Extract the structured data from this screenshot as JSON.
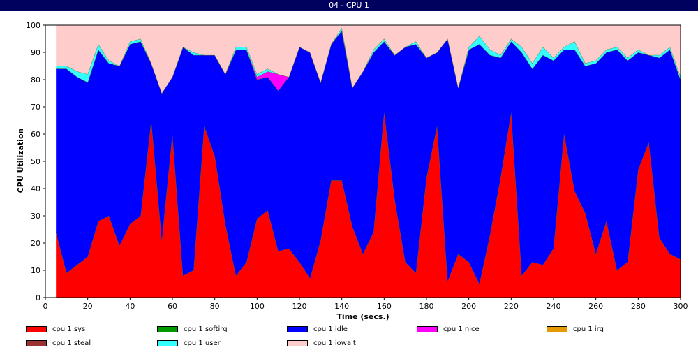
{
  "window": {
    "title": "04 - CPU 1"
  },
  "chart_data": {
    "type": "area",
    "stacked": true,
    "title": "04 - CPU 1",
    "xlabel": "Time (secs.)",
    "ylabel": "CPU Utilization",
    "xlim": [
      0,
      300
    ],
    "ylim": [
      0,
      100
    ],
    "xticks": [
      0,
      20,
      40,
      60,
      80,
      100,
      120,
      140,
      160,
      180,
      200,
      220,
      240,
      260,
      280,
      300
    ],
    "yticks": [
      0,
      10,
      20,
      30,
      40,
      50,
      60,
      70,
      80,
      90,
      100
    ],
    "grid": false,
    "legend_placement": "bottom",
    "x": [
      5,
      10,
      15,
      20,
      25,
      30,
      35,
      40,
      45,
      50,
      55,
      60,
      65,
      70,
      75,
      80,
      85,
      90,
      95,
      100,
      105,
      110,
      115,
      120,
      125,
      130,
      135,
      140,
      145,
      150,
      155,
      160,
      165,
      170,
      175,
      180,
      185,
      190,
      195,
      200,
      205,
      210,
      215,
      220,
      225,
      230,
      235,
      240,
      245,
      250,
      255,
      260,
      265,
      270,
      275,
      280,
      285,
      290,
      295,
      300
    ],
    "series": [
      {
        "name": "cpu 1 sys",
        "color": "#ff0000",
        "values": [
          24,
          9,
          12,
          15,
          28,
          30,
          19,
          27,
          30,
          65,
          21,
          60,
          8,
          10,
          63,
          52,
          27,
          8,
          13,
          29,
          32,
          17,
          18,
          13,
          7,
          21,
          43,
          43,
          26,
          16,
          24,
          68,
          36,
          13,
          9,
          44,
          63,
          6,
          16,
          13,
          5,
          23,
          44,
          68,
          8,
          13,
          12,
          18,
          60,
          39,
          31,
          16,
          28,
          10,
          13,
          47,
          57,
          22,
          16,
          14
        ]
      },
      {
        "name": "cpu 1 softirq",
        "color": "#009900",
        "values": [
          0,
          0,
          0,
          0,
          0,
          0,
          0,
          0,
          0,
          0,
          0,
          0,
          0,
          0,
          0,
          0,
          0,
          0,
          0,
          0,
          0,
          0,
          0,
          0,
          0,
          0,
          0,
          0,
          0,
          0,
          0,
          0,
          0,
          0,
          0,
          0,
          0,
          0,
          0,
          0,
          0,
          0,
          0,
          0,
          0,
          0,
          0,
          0,
          0,
          0,
          0,
          0,
          0,
          0,
          0,
          0,
          0,
          0,
          0,
          0
        ]
      },
      {
        "name": "cpu 1 idle",
        "color": "#0000ff",
        "values": [
          60,
          75,
          69,
          64,
          63,
          56,
          66,
          66,
          64,
          21,
          54,
          21,
          84,
          79,
          26,
          37,
          55,
          83,
          78,
          51,
          49,
          59,
          63,
          79,
          83,
          58,
          50,
          55,
          51,
          67,
          66,
          26,
          53,
          79,
          84,
          44,
          27,
          89,
          61,
          78,
          88,
          66,
          44,
          26,
          82,
          71,
          77,
          69,
          31,
          52,
          54,
          70,
          62,
          81,
          74,
          43,
          32,
          66,
          75,
          66
        ]
      },
      {
        "name": "cpu 1 nice",
        "color": "#ff00ff",
        "values": [
          0,
          0,
          0,
          0,
          0,
          0,
          0,
          0,
          0,
          0,
          0,
          0,
          0,
          0,
          0,
          0,
          0,
          0,
          0,
          1,
          2,
          6,
          0,
          0,
          0,
          0,
          0,
          0,
          0,
          0,
          0,
          0,
          0,
          0,
          0,
          0,
          0,
          0,
          0,
          0,
          0,
          0,
          0,
          0,
          0,
          0,
          0,
          0,
          0,
          0,
          0,
          0,
          0,
          0,
          0,
          0,
          0,
          0,
          0,
          0
        ]
      },
      {
        "name": "cpu 1 irq",
        "color": "#e69900",
        "values": [
          0,
          0,
          0,
          0,
          0,
          0,
          0,
          0,
          0,
          0,
          0,
          0,
          0,
          0,
          0,
          0,
          0,
          0,
          0,
          0,
          0,
          0,
          0,
          0,
          0,
          0,
          0,
          0,
          0,
          0,
          0,
          0,
          0,
          0,
          0,
          0,
          0,
          0,
          0,
          0,
          0,
          0,
          0,
          0,
          0,
          0,
          0,
          0,
          0,
          0,
          0,
          0,
          0,
          0,
          0,
          0,
          0,
          0,
          0,
          0
        ]
      },
      {
        "name": "cpu 1 steal",
        "color": "#993333",
        "values": [
          0,
          0,
          0,
          0,
          0,
          0,
          0,
          0,
          0,
          0,
          0,
          0,
          0,
          0,
          0,
          0,
          0,
          0,
          0,
          0,
          0,
          0,
          0,
          0,
          0,
          0,
          0,
          0,
          0,
          0,
          0,
          0,
          0,
          0,
          0,
          0,
          0,
          0,
          0,
          0,
          0,
          0,
          0,
          0,
          0,
          0,
          0,
          0,
          0,
          0,
          0,
          0,
          0,
          0,
          0,
          0,
          0,
          0,
          0,
          0
        ]
      },
      {
        "name": "cpu 1 user",
        "color": "#33ffff",
        "values": [
          1,
          1,
          2,
          3,
          2,
          1,
          0,
          1,
          1,
          0,
          0,
          0,
          0,
          1,
          0,
          0,
          0,
          1,
          1,
          1,
          1,
          0,
          0,
          0,
          0,
          0,
          0,
          1,
          0,
          0,
          1,
          1,
          0,
          0,
          1,
          0,
          0,
          0,
          0,
          1,
          3,
          2,
          1,
          1,
          2,
          2,
          3,
          1,
          1,
          3,
          1,
          1,
          1,
          1,
          1,
          1,
          0,
          1,
          1,
          1
        ]
      },
      {
        "name": "cpu 1 iowait",
        "color": "#ffcccc",
        "values": [
          15,
          15,
          17,
          18,
          7,
          13,
          15,
          6,
          5,
          14,
          25,
          19,
          8,
          10,
          11,
          11,
          18,
          8,
          8,
          18,
          16,
          18,
          19,
          8,
          10,
          21,
          7,
          1,
          23,
          17,
          9,
          5,
          11,
          8,
          6,
          12,
          10,
          5,
          23,
          8,
          4,
          9,
          11,
          5,
          8,
          14,
          8,
          12,
          8,
          6,
          14,
          13,
          9,
          8,
          12,
          9,
          11,
          11,
          8,
          19
        ]
      }
    ]
  }
}
